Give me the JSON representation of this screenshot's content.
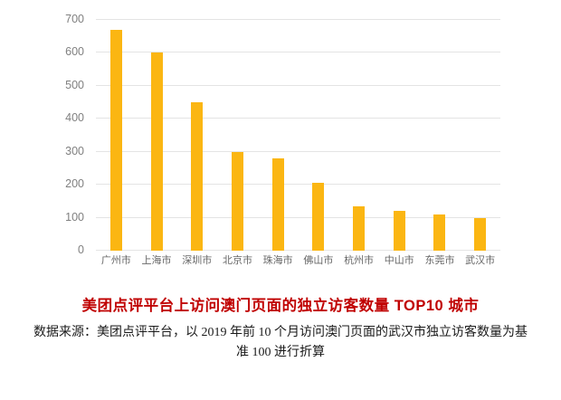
{
  "title": "美团点评平台上访问澳门页面的独立访客数量 TOP10 城市",
  "caption": {
    "line1": "数据来源：美团点评平台，以 2019 年前 10 个月访问澳门页面的武汉市独立访客数量为基",
    "line2": "准 100 进行折算"
  },
  "colors": {
    "bar": "#fbb612",
    "title_text": "#c00000",
    "gridline": "#e4e4e4",
    "y_tick_label": "#808080",
    "x_tick_label": "#666666",
    "caption_text": "#1a1a1a",
    "background": "#ffffff"
  },
  "chart_data": {
    "type": "bar",
    "categories": [
      "广州市",
      "上海市",
      "深圳市",
      "北京市",
      "珠海市",
      "佛山市",
      "杭州市",
      "中山市",
      "东莞市",
      "武汉市"
    ],
    "values": [
      670,
      600,
      450,
      300,
      280,
      205,
      135,
      120,
      110,
      100
    ],
    "title": "美团点评平台上访问澳门页面的独立访客数量 TOP10 城市",
    "xlabel": "",
    "ylabel": "",
    "ylim": [
      0,
      700
    ],
    "yticks": [
      0,
      100,
      200,
      300,
      400,
      500,
      600,
      700
    ],
    "grid": true,
    "legend": "none",
    "bar_color": "#fbb612"
  }
}
